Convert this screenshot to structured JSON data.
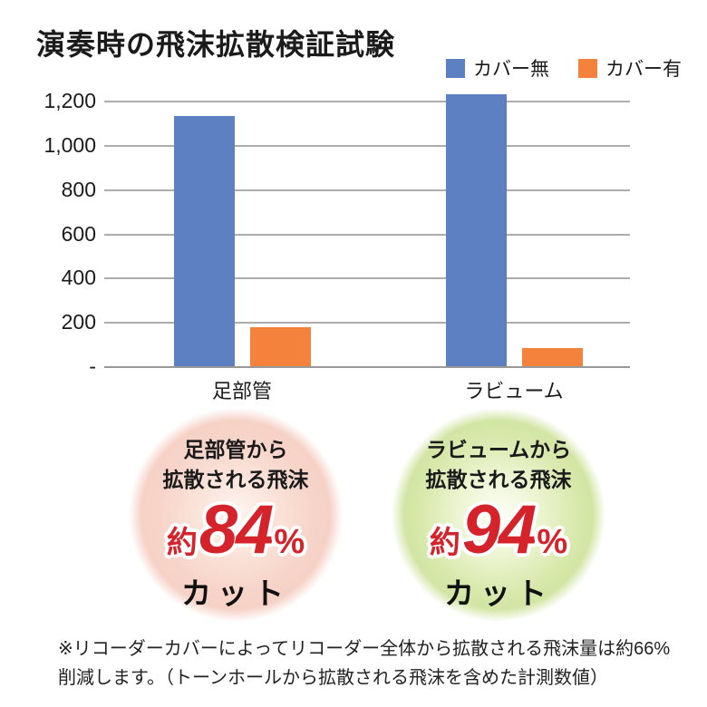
{
  "title": "演奏時の飛沫拡散検証試験",
  "chart_data": {
    "type": "bar",
    "title": "演奏時の飛沫拡散検証試験",
    "categories": [
      "足部管",
      "ラビューム"
    ],
    "series": [
      {
        "name": "カバー無",
        "color": "#5c80c2",
        "values": [
          1130,
          1230
        ]
      },
      {
        "name": "カバー有",
        "color": "#f5823c",
        "values": [
          175,
          80
        ]
      }
    ],
    "xlabel": "",
    "ylabel": "",
    "ylim": [
      0,
      1200
    ],
    "ytick_interval": 200,
    "yticks_top_to_bottom": [
      "1,200",
      "1,000",
      "800",
      "600",
      "400",
      "200",
      "-"
    ],
    "grid": true,
    "legend_position": "top-right",
    "gridline_color": "#adadad"
  },
  "legend": {
    "items": [
      {
        "label": "カバー無",
        "color": "#5c80c2"
      },
      {
        "label": "カバー有",
        "color": "#f5823c"
      }
    ]
  },
  "badges": [
    {
      "line1": "足部管から",
      "line2": "拡散される飛沫",
      "approx": "約",
      "percent": "84",
      "unit": "%",
      "label": "カット",
      "theme_color": "#f6d1c6",
      "accent_color": "#d5232b"
    },
    {
      "line1": "ラビュームから",
      "line2": "拡散される飛沫",
      "approx": "約",
      "percent": "94",
      "unit": "%",
      "label": "カット",
      "theme_color": "#d2e5a3",
      "accent_color": "#d5232b"
    }
  ],
  "footnote": "※リコーダーカバーによってリコーダー全体から拡散される飛沫量は約66%\n削減します。（トーンホールから拡散される飛沫を含めた計測数値）"
}
